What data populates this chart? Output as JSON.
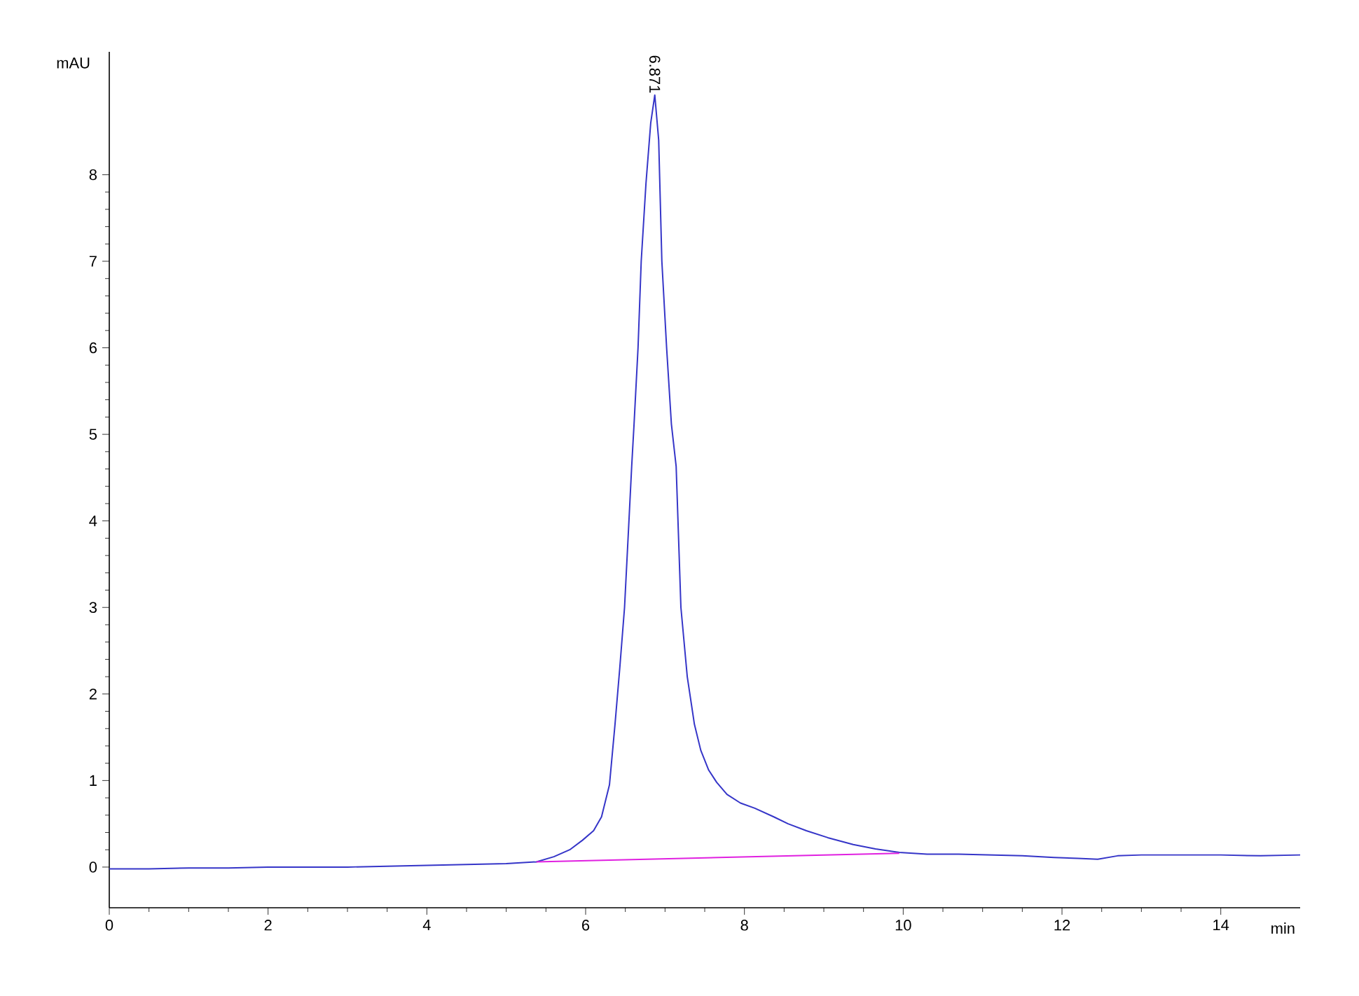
{
  "chart_data": {
    "type": "line",
    "xlabel": "min",
    "ylabel": "mAU",
    "xlim": [
      0,
      15
    ],
    "ylim": [
      -0.47,
      9.42
    ],
    "xticks": [
      0,
      2,
      4,
      6,
      8,
      10,
      12,
      14
    ],
    "yticks": [
      0,
      1,
      2,
      3,
      4,
      5,
      6,
      7,
      8
    ],
    "annotations": [
      {
        "text": "6.871",
        "x": 6.871,
        "y": 8.92
      }
    ],
    "series": [
      {
        "color": "#3535c8",
        "x": [
          0,
          0.5,
          1,
          1.5,
          2,
          2.5,
          3,
          3.5,
          4,
          4.5,
          5,
          5.38,
          5.6,
          5.8,
          5.96,
          6.1,
          6.2,
          6.3,
          6.37,
          6.43,
          6.49,
          6.54,
          6.58,
          6.61,
          6.66,
          6.7,
          6.76,
          6.82,
          6.871,
          6.92,
          6.96,
          7.02,
          7.08,
          7.14,
          7.2,
          7.28,
          7.37,
          7.45,
          7.55,
          7.65,
          7.78,
          7.95,
          8.13,
          8.37,
          8.55,
          8.78,
          9.05,
          9.37,
          9.65,
          9.95,
          10.3,
          10.7,
          11.1,
          11.5,
          11.9,
          12.2,
          12.45,
          12.7,
          13,
          13.5,
          14,
          14.5,
          15
        ],
        "values": [
          -0.02,
          -0.02,
          -0.01,
          -0.01,
          0,
          0,
          0,
          0.01,
          0.02,
          0.03,
          0.04,
          0.06,
          0.12,
          0.2,
          0.31,
          0.42,
          0.58,
          0.95,
          1.65,
          2.3,
          3.0,
          3.9,
          4.63,
          5.12,
          6.0,
          7.0,
          7.9,
          8.6,
          8.92,
          8.4,
          7.0,
          6.0,
          5.12,
          4.63,
          3.0,
          2.2,
          1.65,
          1.35,
          1.12,
          0.98,
          0.84,
          0.74,
          0.68,
          0.58,
          0.5,
          0.42,
          0.34,
          0.26,
          0.21,
          0.17,
          0.15,
          0.15,
          0.14,
          0.13,
          0.11,
          0.1,
          0.09,
          0.13,
          0.14,
          0.14,
          0.14,
          0.13,
          0.14
        ]
      },
      {
        "color": "#e020e0",
        "x": [
          5.38,
          9.95
        ],
        "values": [
          0.06,
          0.16
        ]
      }
    ]
  }
}
